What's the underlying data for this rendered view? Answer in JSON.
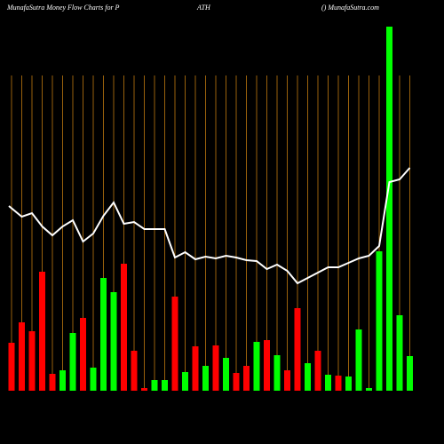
{
  "chart_data": {
    "type": "bar",
    "title": "MunafaSutra  Money Flow  Charts for P",
    "title_middle": "ATH",
    "title_right": "() MunafaSutra.com",
    "categories": [
      null,
      null,
      null,
      null,
      null,
      null,
      null,
      null,
      null,
      null,
      null,
      null,
      null,
      null,
      null,
      null,
      null,
      null,
      null,
      null,
      null,
      null,
      null,
      null,
      null,
      null,
      null,
      null,
      null,
      null,
      null,
      null,
      null,
      null,
      null,
      null,
      null,
      null,
      null,
      null
    ],
    "values": [
      54,
      77,
      67,
      134,
      19,
      23,
      65,
      82,
      26,
      127,
      111,
      143,
      45,
      3,
      12,
      12,
      106,
      21,
      50,
      28,
      51,
      37,
      20,
      28,
      55,
      57,
      40,
      23,
      93,
      31,
      45,
      18,
      17,
      16,
      69,
      3,
      157,
      410,
      85,
      39
    ],
    "colors": [
      "#ff0000",
      "#ff0000",
      "#ff0000",
      "#ff0000",
      "#ff0000",
      "#00ff00",
      "#00ff00",
      "#ff0000",
      "#00ff00",
      "#00ff00",
      "#00ff00",
      "#ff0000",
      "#ff0000",
      "#ff0000",
      "#00ff00",
      "#00ff00",
      "#ff0000",
      "#00ff00",
      "#ff0000",
      "#00ff00",
      "#ff0000",
      "#00ff00",
      "#ff0000",
      "#ff0000",
      "#00ff00",
      "#ff0000",
      "#00ff00",
      "#ff0000",
      "#ff0000",
      "#00ff00",
      "#ff0000",
      "#00ff00",
      "#ff0000",
      "#00ff00",
      "#00ff00",
      "#00ff00",
      "#00ff00",
      "#00ff00",
      "#00ff00",
      "#00ff00"
    ],
    "line": {
      "color": "#ffffff",
      "values": [
        208,
        196,
        200,
        185,
        175,
        185,
        192,
        168,
        177,
        197,
        212,
        188,
        190,
        182,
        182,
        182,
        150,
        156,
        148,
        151,
        149,
        152,
        150,
        147,
        146,
        137,
        142,
        135,
        121,
        127,
        133,
        139,
        139,
        144,
        149,
        152,
        163,
        235,
        238,
        251
      ]
    },
    "ylim": [
      0,
      410
    ],
    "grid": true,
    "grid_color": "#c07a10",
    "background": "#000000"
  }
}
